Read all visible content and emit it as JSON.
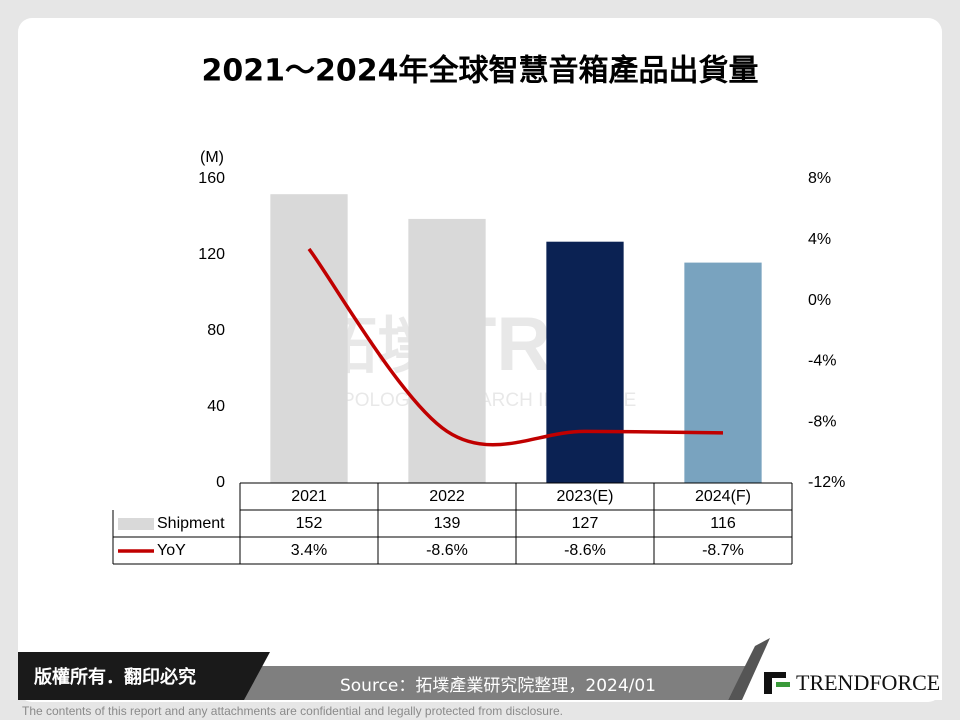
{
  "chart_data": {
    "type": "bar",
    "title": "2021～2024年全球智慧音箱產品出貨量",
    "y_unit": "(M)",
    "categories": [
      "2021",
      "2022",
      "2023(E)",
      "2024(F)"
    ],
    "series": [
      {
        "name": "Shipment",
        "type": "bar",
        "color": "#d9d9d9",
        "colors": [
          "#d9d9d9",
          "#d9d9d9",
          "#0b2253",
          "#79a3bf"
        ],
        "values": [
          152,
          139,
          127,
          116
        ]
      },
      {
        "name": "YoY",
        "type": "line",
        "axis": "y2",
        "color": "#c00000",
        "values": [
          3.4,
          -8.6,
          -8.6,
          -8.7
        ],
        "value_labels": [
          "3.4%",
          "-8.6%",
          "-8.6%",
          "-8.7%"
        ]
      }
    ],
    "ylim": [
      0,
      160
    ],
    "yticks": [
      0,
      40,
      80,
      120,
      160
    ],
    "y2lim": [
      -12,
      8
    ],
    "y2ticks": [
      {
        "value": -12,
        "label": "-12%"
      },
      {
        "value": -8,
        "label": "-8%"
      },
      {
        "value": -4,
        "label": "-4%"
      },
      {
        "value": 0,
        "label": "0%"
      },
      {
        "value": 4,
        "label": "4%"
      },
      {
        "value": 8,
        "label": "8%"
      }
    ],
    "grid": false
  },
  "watermark": {
    "cn": "拓墣",
    "logo": "TRi",
    "en": "TOPOLOGY RESEARCH INSTITUTE"
  },
  "copyright": "版權所有．翻印必究",
  "source": "Source：拓墣產業研究院整理，2024/01",
  "brand": "TRENDFORCE",
  "disclaimer": "The contents of this report and any attachments are confidential and legally protected from disclosure."
}
